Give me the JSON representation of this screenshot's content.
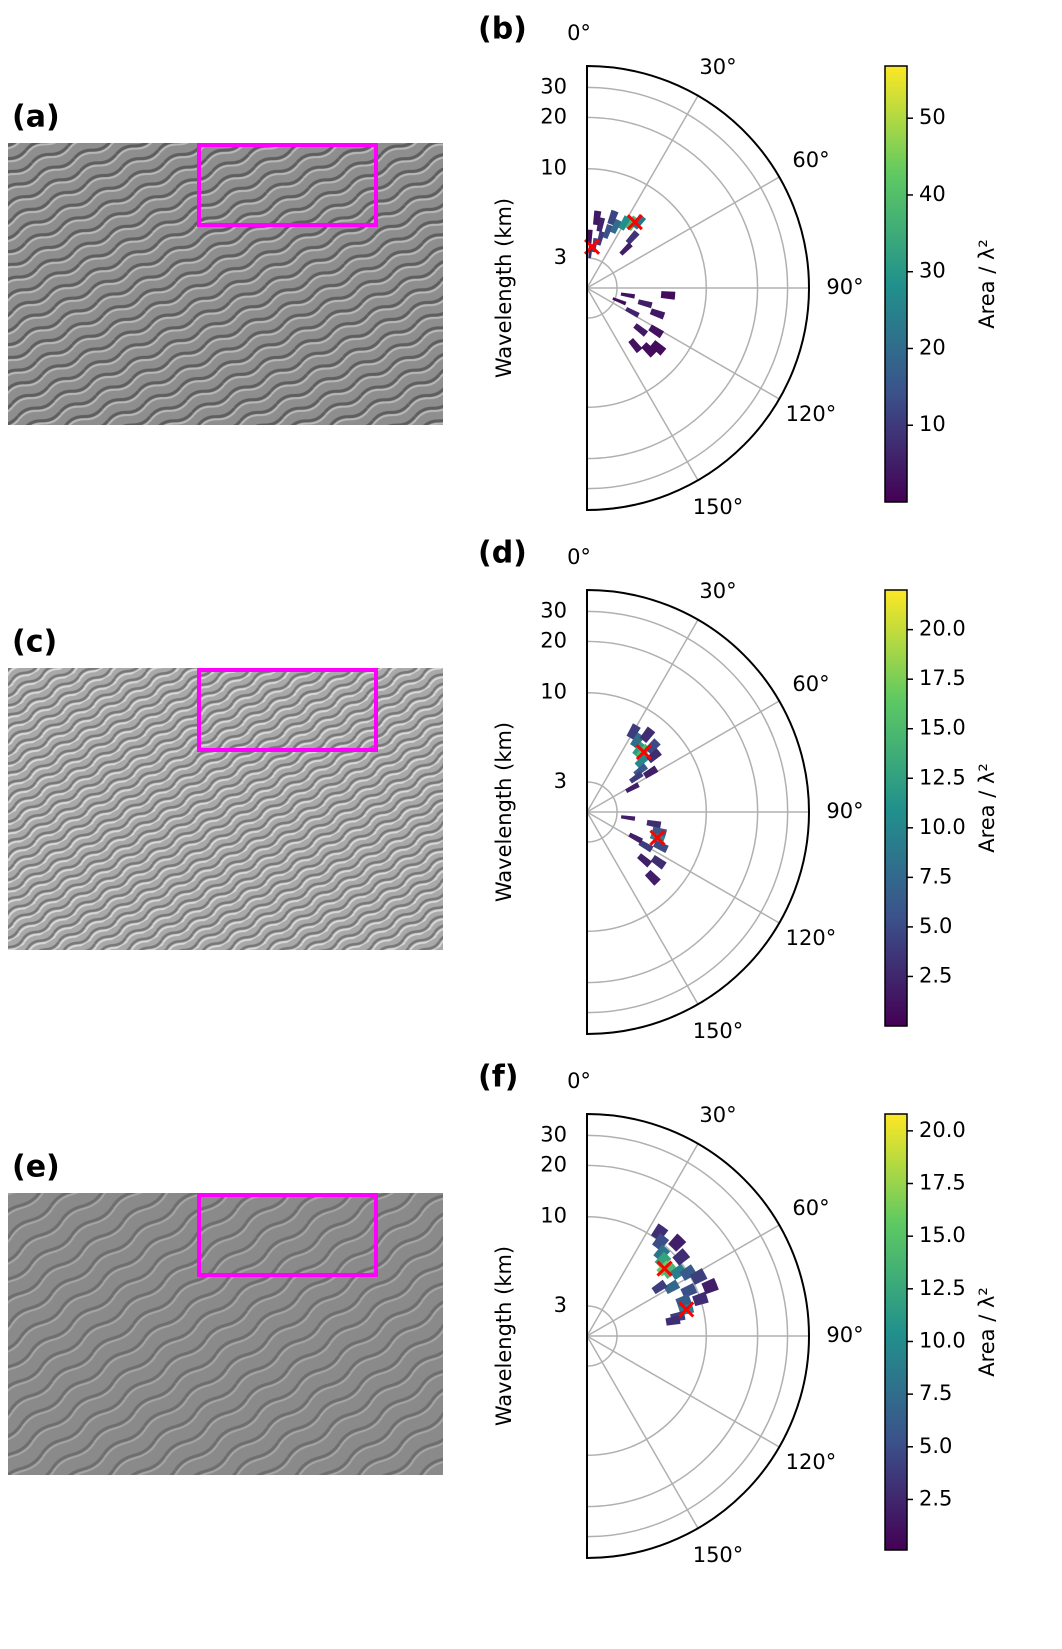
{
  "image_panels": [
    {
      "label": "(a)"
    },
    {
      "label": "(c)"
    },
    {
      "label": "(e)"
    }
  ],
  "chart_data": [
    {
      "type": "polar",
      "title": "(b)",
      "ylabel": "Wavelength (km)",
      "rscale": "log",
      "colormap": "viridis",
      "rlim": [
        2,
        40
      ],
      "rticks": [
        3,
        10,
        20,
        30
      ],
      "thetalim": [
        0,
        180
      ],
      "thetaticks": [
        {
          "value": 0,
          "label": "0°"
        },
        {
          "value": 30,
          "label": "30°"
        },
        {
          "value": 60,
          "label": "60°"
        },
        {
          "value": 90,
          "label": "90°"
        },
        {
          "value": 120,
          "label": "120°"
        },
        {
          "value": 150,
          "label": "150°"
        }
      ],
      "clim": [
        0,
        56.8
      ],
      "cticks": [
        10,
        20,
        30,
        40,
        50
      ],
      "clabel": "Area / λ²",
      "marker_color": "#ff0000",
      "cells": [
        [
          5,
          3.3,
          8
        ],
        [
          10,
          3.6,
          12
        ],
        [
          15,
          4,
          10
        ],
        [
          20,
          4.5,
          14
        ],
        [
          25,
          5,
          20
        ],
        [
          30,
          5.5,
          28
        ],
        [
          35,
          5.8,
          38
        ],
        [
          38,
          6.2,
          22
        ],
        [
          42,
          5,
          9
        ],
        [
          20,
          5.5,
          12
        ],
        [
          12,
          4.8,
          6
        ],
        [
          8,
          5.2,
          4
        ],
        [
          45,
          4.2,
          5
        ],
        [
          3,
          4,
          3
        ],
        [
          100,
          3.5,
          3
        ],
        [
          105,
          4.5,
          5
        ],
        [
          110,
          5.5,
          4
        ],
        [
          118,
          4,
          6
        ],
        [
          122,
          6,
          3
        ],
        [
          128,
          5,
          4
        ],
        [
          135,
          6.5,
          2
        ],
        [
          140,
          5.5,
          3
        ],
        [
          112,
          3.2,
          2
        ],
        [
          95,
          6,
          2
        ],
        [
          130,
          7,
          2
        ]
      ],
      "markers": [
        [
          7,
          3.5
        ],
        [
          36,
          6.0
        ]
      ]
    },
    {
      "type": "polar",
      "title": "(d)",
      "ylabel": "Wavelength (km)",
      "rscale": "log",
      "colormap": "viridis",
      "rlim": [
        2,
        40
      ],
      "rticks": [
        3,
        10,
        20,
        30
      ],
      "thetalim": [
        0,
        180
      ],
      "thetaticks": [
        {
          "value": 0,
          "label": "0°"
        },
        {
          "value": 30,
          "label": "30°"
        },
        {
          "value": 60,
          "label": "60°"
        },
        {
          "value": 90,
          "label": "90°"
        },
        {
          "value": 120,
          "label": "120°"
        },
        {
          "value": 150,
          "label": "150°"
        }
      ],
      "clim": [
        0,
        22
      ],
      "cticks": [
        {
          "value": 2.5,
          "label": "2.5"
        },
        {
          "value": 5,
          "label": "5.0"
        },
        {
          "value": 7.5,
          "label": "7.5"
        },
        {
          "value": 10,
          "label": "10.0"
        },
        {
          "value": 12.5,
          "label": "12.5"
        },
        {
          "value": 15,
          "label": "15.0"
        },
        {
          "value": 17.5,
          "label": "17.5"
        },
        {
          "value": 20,
          "label": "20.0"
        }
      ],
      "clabel": "Area / λ²",
      "marker_color": "#ff0000",
      "cells": [
        [
          30,
          7,
          4
        ],
        [
          35,
          6.5,
          8
        ],
        [
          40,
          6,
          12
        ],
        [
          43,
          6.1,
          15
        ],
        [
          47,
          5.5,
          10
        ],
        [
          52,
          5,
          6
        ],
        [
          55,
          4.5,
          4
        ],
        [
          38,
          7.5,
          3
        ],
        [
          45,
          7,
          5
        ],
        [
          50,
          6.5,
          3
        ],
        [
          58,
          5.5,
          2
        ],
        [
          62,
          4,
          2
        ],
        [
          100,
          5,
          3
        ],
        [
          105,
          5.5,
          6
        ],
        [
          110,
          5.5,
          10
        ],
        [
          115,
          6,
          5
        ],
        [
          120,
          5,
          4
        ],
        [
          125,
          6.5,
          3
        ],
        [
          130,
          5.5,
          2
        ],
        [
          118,
          4.2,
          2
        ],
        [
          135,
          7,
          2
        ],
        [
          98,
          3.5,
          2
        ]
      ],
      "markers": [
        [
          43.5,
          6.1
        ],
        [
          110,
          5.5
        ]
      ]
    },
    {
      "type": "polar",
      "title": "(f)",
      "ylabel": "Wavelength (km)",
      "rscale": "log",
      "colormap": "viridis",
      "rlim": [
        2,
        40
      ],
      "rticks": [
        3,
        10,
        20,
        30
      ],
      "thetalim": [
        0,
        180
      ],
      "thetaticks": [
        {
          "value": 0,
          "label": "0°"
        },
        {
          "value": 30,
          "label": "30°"
        },
        {
          "value": 60,
          "label": "60°"
        },
        {
          "value": 90,
          "label": "90°"
        },
        {
          "value": 120,
          "label": "120°"
        },
        {
          "value": 150,
          "label": "150°"
        }
      ],
      "clim": [
        0.1,
        20.8
      ],
      "cticks": [
        {
          "value": 2.5,
          "label": "2.5"
        },
        {
          "value": 5,
          "label": "5.0"
        },
        {
          "value": 7.5,
          "label": "7.5"
        },
        {
          "value": 10,
          "label": "10.0"
        },
        {
          "value": 12.5,
          "label": "12.5"
        },
        {
          "value": 15,
          "label": "15.0"
        },
        {
          "value": 17.5,
          "label": "17.5"
        },
        {
          "value": 20,
          "label": "20.0"
        }
      ],
      "clabel": "Area / λ²",
      "marker_color": "#ff0000",
      "cells": [
        [
          35,
          11,
          3
        ],
        [
          38,
          10,
          5
        ],
        [
          42,
          9,
          8
        ],
        [
          45,
          8.5,
          12
        ],
        [
          49,
          8,
          16
        ],
        [
          52,
          8.3,
          14
        ],
        [
          55,
          9,
          9
        ],
        [
          58,
          10,
          6
        ],
        [
          62,
          11,
          4
        ],
        [
          66,
          9,
          5
        ],
        [
          70,
          8,
          6
        ],
        [
          75,
          8,
          9
        ],
        [
          78,
          7,
          4
        ],
        [
          60,
          7.5,
          7
        ],
        [
          50,
          10.5,
          3
        ],
        [
          44,
          11.5,
          2
        ],
        [
          68,
          12,
          2
        ],
        [
          72,
          10,
          3
        ],
        [
          80,
          6.5,
          3
        ],
        [
          56,
          6.5,
          4
        ]
      ],
      "markers": [
        [
          49,
          8.0
        ],
        [
          75,
          8.0
        ]
      ]
    }
  ]
}
